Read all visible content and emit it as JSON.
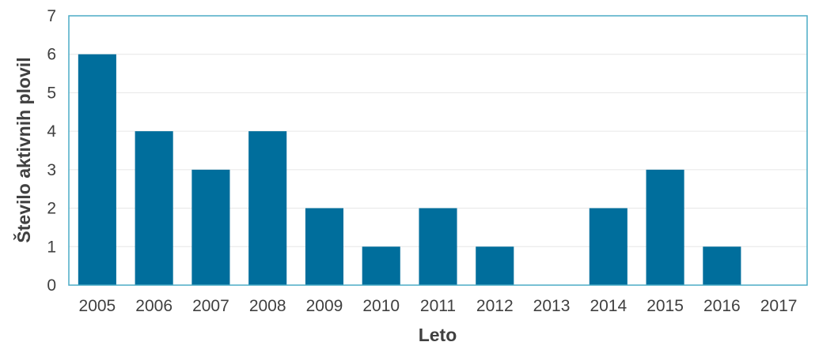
{
  "chart_data": {
    "type": "bar",
    "categories": [
      "2005",
      "2006",
      "2007",
      "2008",
      "2009",
      "2010",
      "2011",
      "2012",
      "2013",
      "2014",
      "2015",
      "2016",
      "2017"
    ],
    "values": [
      6,
      4,
      3,
      4,
      2,
      1,
      2,
      1,
      0,
      2,
      3,
      1,
      0
    ],
    "xlabel": "Leto",
    "ylabel": "Število aktivnih plovil",
    "ylim": [
      0,
      7
    ],
    "yticks": [
      0,
      1,
      2,
      3,
      4,
      5,
      6,
      7
    ],
    "grid": true,
    "legend": "none",
    "colors": {
      "bar": "#006E9C",
      "frame": "#4BACC6",
      "grid": "#E6E6E6"
    }
  }
}
